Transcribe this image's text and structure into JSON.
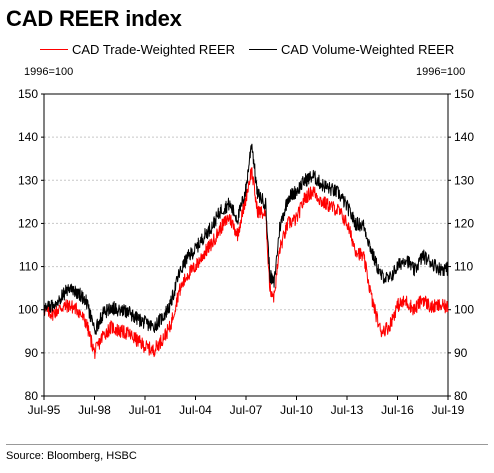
{
  "title": "CAD REER index",
  "legend": [
    {
      "name": "CAD Trade-Weighted REER",
      "color": "#ff0000"
    },
    {
      "name": "CAD Volume-Weighted REER",
      "color": "#000000"
    }
  ],
  "unit_left": "1996=100",
  "unit_right": "1996=100",
  "source": "Source: Bloomberg, HSBC",
  "chart_data": {
    "type": "line",
    "x_ticks": [
      "Jul-95",
      "Jul-98",
      "Jul-01",
      "Jul-04",
      "Jul-07",
      "Jul-10",
      "Jul-13",
      "Jul-16",
      "Jul-19"
    ],
    "y_ticks": [
      80,
      90,
      100,
      110,
      120,
      130,
      140,
      150
    ],
    "ylim": [
      80,
      150
    ],
    "xlim": [
      "1995-07",
      "2019-07"
    ],
    "grid": true,
    "legend_position": "top",
    "series": [
      {
        "name": "CAD Trade-Weighted REER",
        "color": "#ff0000",
        "points": [
          [
            "1995-07",
            100
          ],
          [
            "1996-01",
            99
          ],
          [
            "1996-07",
            100.5
          ],
          [
            "1997-01",
            101
          ],
          [
            "1997-07",
            100
          ],
          [
            "1998-01",
            97
          ],
          [
            "1998-07",
            90
          ],
          [
            "1998-10",
            92
          ],
          [
            "1999-01",
            94
          ],
          [
            "1999-07",
            96
          ],
          [
            "2000-01",
            95
          ],
          [
            "2000-07",
            94.5
          ],
          [
            "2001-01",
            93
          ],
          [
            "2001-07",
            91.5
          ],
          [
            "2002-01",
            90.5
          ],
          [
            "2002-07",
            93
          ],
          [
            "2003-01",
            96
          ],
          [
            "2003-07",
            104
          ],
          [
            "2004-01",
            108
          ],
          [
            "2004-07",
            110
          ],
          [
            "2005-01",
            113
          ],
          [
            "2005-07",
            115.5
          ],
          [
            "2006-01",
            119
          ],
          [
            "2006-07",
            121.5
          ],
          [
            "2007-01",
            117.5
          ],
          [
            "2007-07",
            126
          ],
          [
            "2007-11",
            132.5
          ],
          [
            "2008-03",
            123
          ],
          [
            "2008-09",
            122
          ],
          [
            "2008-12",
            105
          ],
          [
            "2009-03",
            103
          ],
          [
            "2009-07",
            114
          ],
          [
            "2010-01",
            120
          ],
          [
            "2010-07",
            121
          ],
          [
            "2011-01",
            126
          ],
          [
            "2011-07",
            127.5
          ],
          [
            "2012-01",
            125
          ],
          [
            "2012-07",
            124
          ],
          [
            "2013-01",
            123
          ],
          [
            "2013-07",
            120
          ],
          [
            "2014-01",
            114
          ],
          [
            "2014-07",
            112
          ],
          [
            "2015-01",
            102
          ],
          [
            "2015-07",
            95
          ],
          [
            "2016-01",
            96
          ],
          [
            "2016-07",
            101
          ],
          [
            "2017-01",
            102
          ],
          [
            "2017-07",
            100
          ],
          [
            "2018-01",
            102.5
          ],
          [
            "2018-07",
            100.5
          ],
          [
            "2019-01",
            101
          ],
          [
            "2019-07",
            100.5
          ]
        ]
      },
      {
        "name": "CAD Volume-Weighted REER",
        "color": "#000000",
        "points": [
          [
            "1995-07",
            100
          ],
          [
            "1996-01",
            101
          ],
          [
            "1996-07",
            103
          ],
          [
            "1997-01",
            105
          ],
          [
            "1997-07",
            104
          ],
          [
            "1998-01",
            102
          ],
          [
            "1998-07",
            95
          ],
          [
            "1998-10",
            97
          ],
          [
            "1999-01",
            99
          ],
          [
            "1999-07",
            100.5
          ],
          [
            "2000-01",
            100
          ],
          [
            "2000-07",
            99.5
          ],
          [
            "2001-01",
            98
          ],
          [
            "2001-07",
            97
          ],
          [
            "2002-01",
            96
          ],
          [
            "2002-07",
            98
          ],
          [
            "2003-01",
            101
          ],
          [
            "2003-07",
            108
          ],
          [
            "2004-01",
            112
          ],
          [
            "2004-07",
            114
          ],
          [
            "2005-01",
            117
          ],
          [
            "2005-07",
            119.5
          ],
          [
            "2006-01",
            123
          ],
          [
            "2006-07",
            124.5
          ],
          [
            "2007-01",
            121
          ],
          [
            "2007-07",
            128
          ],
          [
            "2007-11",
            139
          ],
          [
            "2008-03",
            127
          ],
          [
            "2008-09",
            124.5
          ],
          [
            "2008-12",
            108
          ],
          [
            "2009-03",
            106
          ],
          [
            "2009-07",
            119
          ],
          [
            "2010-01",
            126
          ],
          [
            "2010-07",
            127.5
          ],
          [
            "2011-01",
            130
          ],
          [
            "2011-07",
            131
          ],
          [
            "2012-01",
            129
          ],
          [
            "2012-07",
            128
          ],
          [
            "2013-01",
            127
          ],
          [
            "2013-07",
            124
          ],
          [
            "2014-01",
            120
          ],
          [
            "2014-07",
            119.5
          ],
          [
            "2015-01",
            113
          ],
          [
            "2015-07",
            108
          ],
          [
            "2016-01",
            107
          ],
          [
            "2016-07",
            110
          ],
          [
            "2017-01",
            112
          ],
          [
            "2017-07",
            109
          ],
          [
            "2018-01",
            112.5
          ],
          [
            "2018-07",
            111
          ],
          [
            "2019-01",
            109.5
          ],
          [
            "2019-07",
            109.5
          ]
        ]
      }
    ]
  }
}
